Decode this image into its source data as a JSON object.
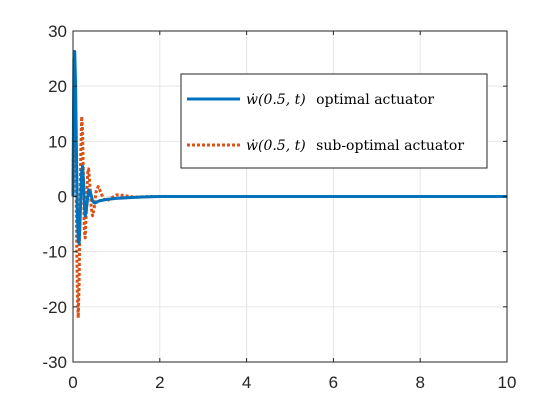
{
  "chart_data": {
    "type": "line",
    "xlim": [
      0,
      10
    ],
    "ylim": [
      -30,
      30
    ],
    "x_ticks": [
      0,
      2,
      4,
      6,
      8,
      10
    ],
    "y_ticks": [
      30,
      20,
      10,
      0,
      -10,
      -20,
      -30
    ],
    "x_tick_labels": [
      "0",
      "2",
      "4",
      "6",
      "8",
      "10"
    ],
    "y_tick_labels": [
      "30",
      "20",
      "10",
      "0",
      "-10",
      "-20",
      "-30"
    ],
    "grid": true,
    "legend_position": "upper-right",
    "series": [
      {
        "name": "ẇ(0.5, t) optimal actuator",
        "legend_math": "ẇ(0.5, t)",
        "legend_text": "optimal actuator",
        "color": "#0072BD",
        "line_style": "solid",
        "line_width": 3,
        "points": [
          [
            0,
            0
          ],
          [
            0.02,
            25
          ],
          [
            0.04,
            26.3
          ],
          [
            0.06,
            20
          ],
          [
            0.08,
            8
          ],
          [
            0.1,
            -3
          ],
          [
            0.12,
            -8
          ],
          [
            0.14,
            -8.5
          ],
          [
            0.16,
            -5
          ],
          [
            0.18,
            0
          ],
          [
            0.2,
            4.5
          ],
          [
            0.22,
            5.5
          ],
          [
            0.24,
            3
          ],
          [
            0.26,
            -1
          ],
          [
            0.28,
            -3.5
          ],
          [
            0.3,
            -3
          ],
          [
            0.33,
            -0.8
          ],
          [
            0.36,
            1.2
          ],
          [
            0.4,
            0.8
          ],
          [
            0.45,
            -0.8
          ],
          [
            0.5,
            -1.2
          ],
          [
            0.6,
            -0.8
          ],
          [
            0.8,
            -0.5
          ],
          [
            1.0,
            -0.35
          ],
          [
            1.3,
            -0.2
          ],
          [
            1.6,
            -0.1
          ],
          [
            2.0,
            0
          ],
          [
            10,
            0
          ]
        ]
      },
      {
        "name": "ẇ(0.5, t) sub-optimal actuator",
        "legend_math": "ẇ(0.5, t)",
        "legend_text": "sub-optimal actuator",
        "color": "#D95319",
        "line_style": "dotted",
        "line_width": 3,
        "points": [
          [
            0,
            0
          ],
          [
            0.02,
            18
          ],
          [
            0.04,
            21
          ],
          [
            0.06,
            12
          ],
          [
            0.08,
            -5
          ],
          [
            0.1,
            -17
          ],
          [
            0.12,
            -22
          ],
          [
            0.14,
            -16
          ],
          [
            0.16,
            -3
          ],
          [
            0.18,
            8
          ],
          [
            0.2,
            14.5
          ],
          [
            0.22,
            12
          ],
          [
            0.24,
            3
          ],
          [
            0.26,
            -6
          ],
          [
            0.28,
            -7.5
          ],
          [
            0.3,
            -4
          ],
          [
            0.32,
            1
          ],
          [
            0.34,
            4.5
          ],
          [
            0.36,
            5
          ],
          [
            0.39,
            2
          ],
          [
            0.42,
            -2
          ],
          [
            0.45,
            -3.5
          ],
          [
            0.49,
            -2
          ],
          [
            0.53,
            0.8
          ],
          [
            0.58,
            1.8
          ],
          [
            0.64,
            0.8
          ],
          [
            0.7,
            -0.4
          ],
          [
            0.78,
            -0.8
          ],
          [
            0.88,
            -0.3
          ],
          [
            1.0,
            0.3
          ],
          [
            1.15,
            0.2
          ],
          [
            1.4,
            -0.1
          ],
          [
            1.8,
            0
          ],
          [
            10,
            0
          ]
        ]
      }
    ]
  }
}
